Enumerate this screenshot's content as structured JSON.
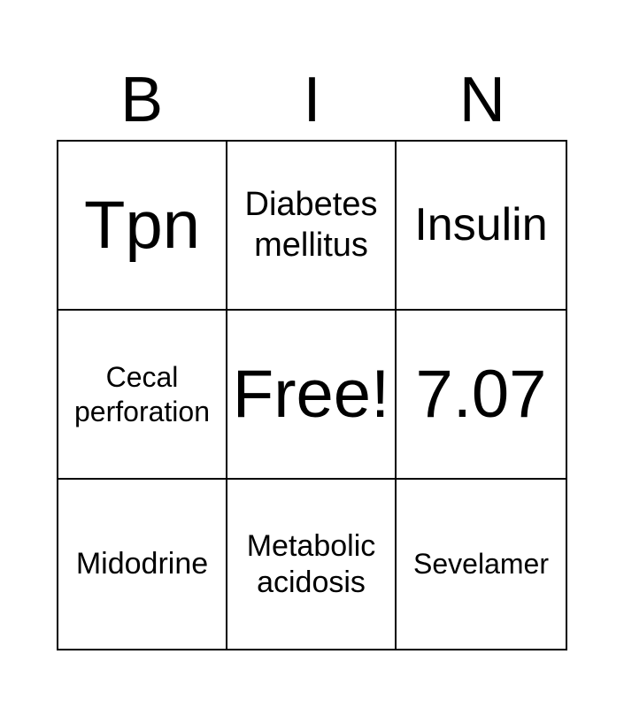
{
  "header": {
    "letters": [
      "B",
      "I",
      "N"
    ]
  },
  "cells": [
    {
      "text": "Tpn"
    },
    {
      "text": "Diabetes mellitus"
    },
    {
      "text": "Insulin"
    },
    {
      "text": "Cecal perforation"
    },
    {
      "text": "Free!"
    },
    {
      "text": "7.07"
    },
    {
      "text": "Midodrine"
    },
    {
      "text": "Metabolic acidosis"
    },
    {
      "text": "Sevelamer"
    }
  ]
}
